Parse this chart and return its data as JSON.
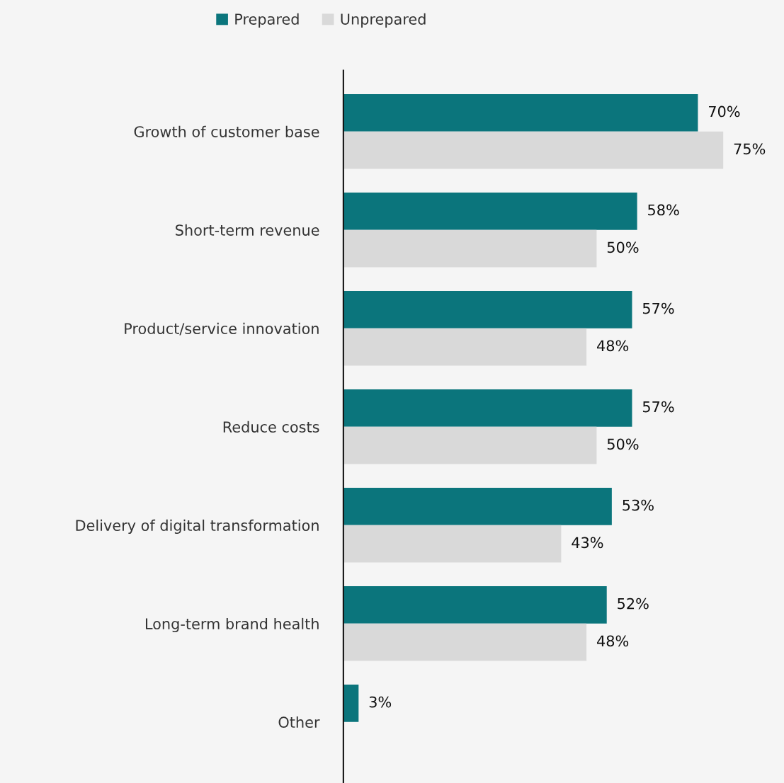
{
  "chart_data": {
    "type": "bar",
    "orientation": "horizontal",
    "categories": [
      "Growth of customer base",
      "Short-term revenue",
      "Product/service innovation",
      "Reduce costs",
      "Delivery of digital transformation",
      "Long-term brand health",
      "Other"
    ],
    "series": [
      {
        "name": "Prepared",
        "color": "#0b757c",
        "values": [
          70,
          58,
          57,
          57,
          53,
          52,
          3
        ],
        "value_labels": [
          "70%",
          "58%",
          "57%",
          "57%",
          "53%",
          "52%",
          "3%"
        ]
      },
      {
        "name": "Unprepared",
        "color": "#d9d9d9",
        "values": [
          75,
          50,
          48,
          50,
          43,
          48,
          null
        ],
        "value_labels": [
          "75%",
          "50%",
          "48%",
          "50%",
          "43%",
          "48%",
          null
        ]
      }
    ],
    "legend": "top",
    "grid": false,
    "tick_labels": "y"
  }
}
